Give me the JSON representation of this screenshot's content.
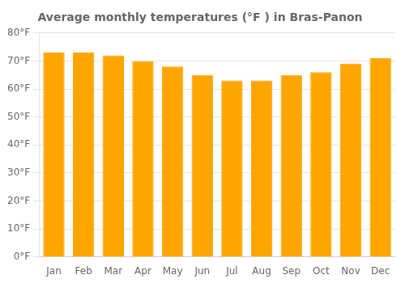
{
  "chart_data": {
    "type": "bar",
    "title": "Average monthly temperatures (°F ) in Bras-Panon",
    "categories": [
      "Jan",
      "Feb",
      "Mar",
      "Apr",
      "May",
      "Jun",
      "Jul",
      "Aug",
      "Sep",
      "Oct",
      "Nov",
      "Dec"
    ],
    "values": [
      73,
      73,
      72,
      70,
      68,
      65,
      63,
      63,
      65,
      66,
      69,
      71
    ],
    "color": "#FFA500",
    "ylim": [
      0,
      80
    ],
    "yticks": [
      {
        "value": 0,
        "label": "0°F"
      },
      {
        "value": 10,
        "label": "10°F"
      },
      {
        "value": 20,
        "label": "20°F"
      },
      {
        "value": 30,
        "label": "30°F"
      },
      {
        "value": 40,
        "label": "40°F"
      },
      {
        "value": 50,
        "label": "50°F"
      },
      {
        "value": 60,
        "label": "60°F"
      },
      {
        "value": 70,
        "label": "70°F"
      },
      {
        "value": 80,
        "label": "80°F"
      }
    ],
    "grid": "y"
  }
}
